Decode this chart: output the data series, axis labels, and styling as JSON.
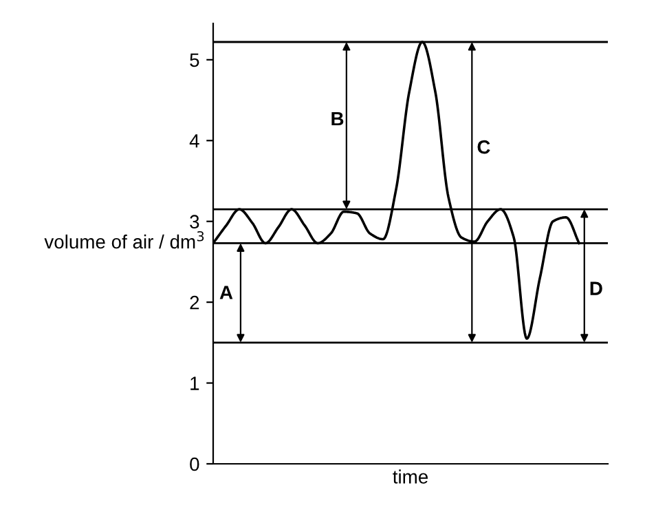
{
  "chart_data": {
    "type": "line",
    "xlabel": "time",
    "ylabel": "volume of air / dm$^{3}$",
    "categories": [
      null,
      null,
      null,
      null,
      null,
      null,
      null,
      null,
      null,
      null,
      null,
      null,
      null,
      null,
      null,
      null,
      null,
      null,
      null,
      null,
      null,
      null,
      null,
      null,
      null,
      null,
      null,
      null,
      null
    ],
    "values": [
      2.73,
      2.95,
      3.15,
      2.98,
      2.73,
      2.93,
      3.15,
      2.95,
      2.73,
      2.85,
      3.12,
      3.1,
      2.85,
      2.78,
      3.4,
      4.6,
      5.22,
      4.6,
      3.3,
      2.8,
      2.75,
      3.0,
      3.15,
      2.8,
      1.55,
      2.3,
      3.0,
      3.05,
      2.73
    ],
    "color": "#000000",
    "ylim": [
      0,
      5.45
    ],
    "yticks": [
      0,
      1,
      2,
      3,
      4,
      5
    ],
    "grid": false,
    "tick_labels": "y",
    "ref_lines": [
      {
        "axis": "y",
        "value": 5.22,
        "color": "#000000"
      },
      {
        "axis": "y",
        "value": 3.15,
        "color": "#000000"
      },
      {
        "axis": "y",
        "value": 2.73,
        "color": "#000000"
      },
      {
        "axis": "y",
        "value": 1.5,
        "color": "#000000"
      }
    ],
    "annotations": [
      "A",
      "B",
      "C",
      "D"
    ]
  }
}
